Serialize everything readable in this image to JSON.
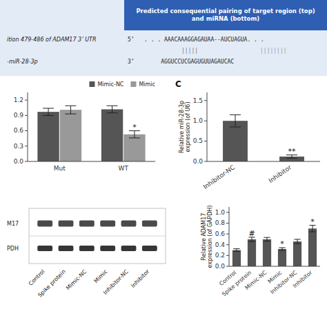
{
  "chart_data": [
    {
      "type": "alignment",
      "title": "Predicted consequential pairing of target region (top)\nand miRNA (bottom)",
      "rows": [
        {
          "label": "ition 479-486 of ADAM17 3’ UTR",
          "sequence": "5’   . . . AAACAAAGGAGAUAA--AUCUAGUA. . ."
        },
        {
          "label": "-miR-28-3p",
          "sequence": "3’        AGGUCCUCGAGUGUUAGAUCAC"
        }
      ],
      "pairing": [
        "|||||",
        "||||||||"
      ]
    },
    {
      "type": "bar",
      "categories": [
        "Mut",
        "WT"
      ],
      "series": [
        {
          "name": "Mimic-NC",
          "color": "#555555",
          "values": [
            0.97,
            1.02
          ],
          "errors": [
            0.07,
            0.07
          ]
        },
        {
          "name": "Mimic",
          "color": "#999999",
          "values": [
            1.01,
            0.53
          ],
          "errors": [
            0.08,
            0.07
          ]
        }
      ],
      "ylim": [
        0,
        1.35
      ],
      "yticks": [
        {
          "value": 0.0,
          "label": "0.0"
        },
        0.3,
        0.6,
        0.9,
        1.2
      ],
      "legend": "upper right",
      "annotations": [
        {
          "text": "*",
          "category": "WT",
          "series": "Mimic"
        }
      ]
    },
    {
      "type": "bar",
      "title": "C",
      "categories": [
        "Inhibitor-NC",
        "Inhibitor"
      ],
      "values": [
        1.0,
        0.12
      ],
      "errors": [
        0.15,
        0.04
      ],
      "color": "#555555",
      "ylim": [
        0,
        1.7
      ],
      "yticks": [
        {
          "value": 0.0,
          "label": "0.0"
        },
        0.5,
        {
          "value": 1.0,
          "label": "1.0"
        },
        1.5
      ],
      "y_label": "Relative miR-28-3p\nexpression (of U6)",
      "annotations": [
        {
          "text": "**",
          "category": "Inhibitor"
        }
      ]
    },
    {
      "type": "blot",
      "categories": [
        "Control",
        "Spike protein",
        "Mimic-NC",
        "Mimic",
        "Inhibitor-NC",
        "Inhibitor"
      ],
      "row_labels": [
        "M17",
        "PDH"
      ]
    },
    {
      "type": "bar",
      "categories": [
        "Control",
        "Spike protein",
        "Mimic-NC",
        "Mimic",
        "Inhibitor-NC",
        "Inhibitor"
      ],
      "values": [
        0.3,
        0.5,
        0.5,
        0.32,
        0.46,
        0.7
      ],
      "errors": [
        0.025,
        0.04,
        0.035,
        0.025,
        0.04,
        0.06
      ],
      "color": "#555555",
      "ylim": [
        0,
        1.1
      ],
      "yticks": [
        {
          "value": 0.0,
          "label": "0.0"
        },
        0.2,
        0.4,
        0.6,
        0.8,
        {
          "value": 1.0,
          "label": "1.0"
        }
      ],
      "y_label": "Relative ADAM17\nexpression (of GAPDH)",
      "annotations": [
        {
          "text": "#",
          "category": "Spike protein"
        },
        {
          "text": "*",
          "category": "Mimic"
        },
        {
          "text": "*",
          "category": "Inhibitor"
        }
      ]
    }
  ]
}
